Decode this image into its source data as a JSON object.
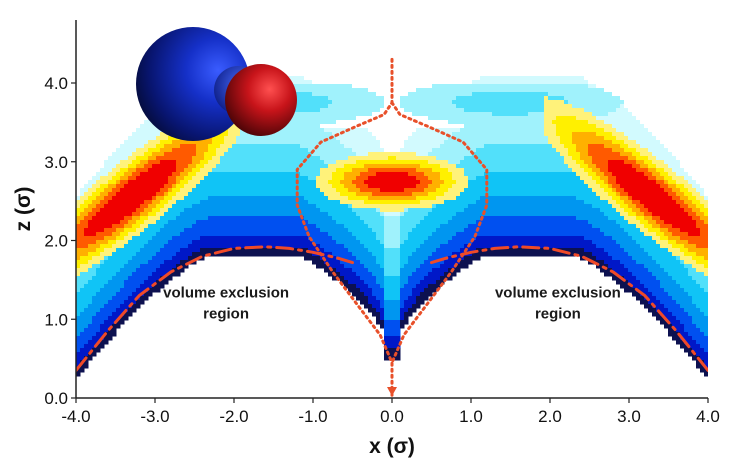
{
  "chart_data": {
    "type": "heatmap",
    "xlabel": "x (σ)",
    "ylabel": "z (σ)",
    "xlim": [
      -4.0,
      4.0
    ],
    "ylim": [
      0.0,
      4.8
    ],
    "x_ticks": [
      "-4.0",
      "-3.0",
      "-2.0",
      "-1.0",
      "0.0",
      "1.0",
      "2.0",
      "3.0",
      "4.0"
    ],
    "y_ticks": [
      "0.0",
      "1.0",
      "2.0",
      "3.0",
      "4.0"
    ],
    "colorscale": [
      "#0d1150",
      "#0018c8",
      "#0050f0",
      "#0096f0",
      "#10c4f6",
      "#52e0fa",
      "#a0f2fc",
      "#d2fafe",
      "#ffffff",
      "#fff27a",
      "#fff000",
      "#ffb000",
      "#ff5a00",
      "#f00000"
    ],
    "hotspots": [
      {
        "x": -3.3,
        "z": 2.15,
        "level": "high"
      },
      {
        "x": 3.3,
        "z": 2.15,
        "level": "high"
      },
      {
        "x": 0.0,
        "z": 2.75,
        "level": "high"
      }
    ],
    "annotations": [
      {
        "text_lines": [
          "volume exclusion",
          "region"
        ],
        "x": -2.1,
        "z": 1.05
      },
      {
        "text_lines": [
          "volume exclusion",
          "region"
        ],
        "x": 2.1,
        "z": 1.05
      }
    ],
    "series": [
      {
        "style": "dotted",
        "color": "#e8502a",
        "x": [
          0.0,
          0.0,
          -0.1,
          -0.45,
          -0.9,
          -1.2,
          -1.2,
          -1.05,
          -0.75,
          -0.45,
          -0.15,
          0.0,
          0.0
        ],
        "y": [
          4.3,
          3.75,
          3.6,
          3.45,
          3.25,
          2.9,
          2.45,
          2.05,
          1.6,
          1.2,
          0.8,
          0.45,
          0.0
        ]
      },
      {
        "style": "dotted",
        "color": "#e8502a",
        "x": [
          0.0,
          0.1,
          0.45,
          0.9,
          1.2,
          1.2,
          1.05,
          0.75,
          0.45,
          0.15,
          0.0
        ],
        "y": [
          3.75,
          3.6,
          3.45,
          3.25,
          2.9,
          2.45,
          2.05,
          1.6,
          1.2,
          0.8,
          0.45
        ]
      },
      {
        "style": "dashdot",
        "color": "#f04a28",
        "x": [
          -4.0,
          -3.6,
          -3.2,
          -2.8,
          -2.4,
          -2.0,
          -1.6,
          -1.3,
          -1.0,
          -0.7,
          -0.5
        ],
        "y": [
          0.35,
          0.85,
          1.3,
          1.6,
          1.8,
          1.9,
          1.92,
          1.9,
          1.85,
          1.78,
          1.72
        ]
      },
      {
        "style": "dashdot",
        "color": "#f04a28",
        "x": [
          0.5,
          0.7,
          1.0,
          1.3,
          1.6,
          2.0,
          2.4,
          2.8,
          3.2,
          3.6,
          4.0
        ],
        "y": [
          1.72,
          1.78,
          1.85,
          1.9,
          1.92,
          1.9,
          1.8,
          1.6,
          1.3,
          0.85,
          0.35
        ]
      }
    ],
    "molecule": {
      "large_sphere_color": "#1a2fd0",
      "small_sphere_color": "#c0141a",
      "x": [
        -2.5,
        -1.6
      ],
      "z": [
        3.95,
        3.8
      ]
    }
  }
}
